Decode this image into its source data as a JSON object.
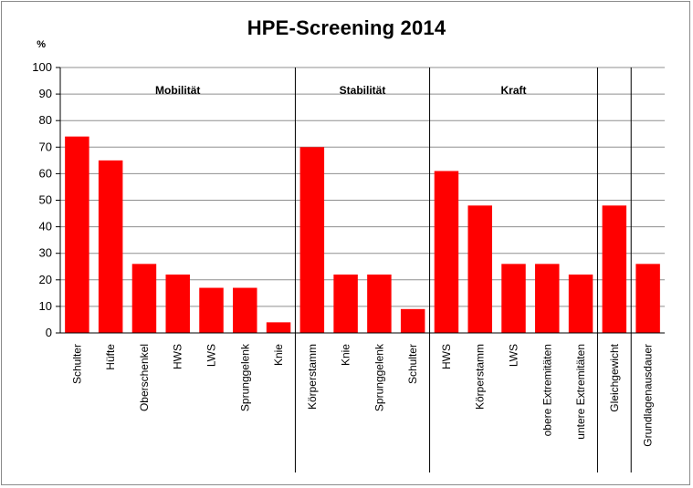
{
  "chart_data": {
    "type": "bar",
    "title": "HPE-Screening 2014",
    "ylabel": "%",
    "xlabel": "",
    "ylim": [
      0,
      100
    ],
    "y_ticks": [
      0,
      10,
      20,
      30,
      40,
      50,
      60,
      70,
      80,
      90,
      100
    ],
    "grid": true,
    "bar_color": "#ff0000",
    "categories": [
      "Schulter",
      "Hüfte",
      "Oberschenkel",
      "HWS",
      "LWS",
      "Sprunggelenk",
      "Knie",
      "Körperstamm",
      "Knie",
      "Sprunggelenk",
      "Schulter",
      "HWS",
      "Körperstamm",
      "LWS",
      "obere Extremitäten",
      "untere Extremitäten",
      "Gleichgewicht",
      "Grundlagenausdauer"
    ],
    "values": [
      74,
      65,
      26,
      22,
      17,
      17,
      4,
      70,
      22,
      22,
      9,
      61,
      48,
      26,
      26,
      22,
      48,
      26
    ],
    "groups": [
      {
        "label": "Mobilität",
        "start": 0,
        "end": 6
      },
      {
        "label": "Stabilität",
        "start": 7,
        "end": 10
      },
      {
        "label": "Kraft",
        "start": 11,
        "end": 15
      },
      {
        "label": "",
        "start": 16,
        "end": 16
      },
      {
        "label": "",
        "start": 17,
        "end": 17
      }
    ]
  }
}
